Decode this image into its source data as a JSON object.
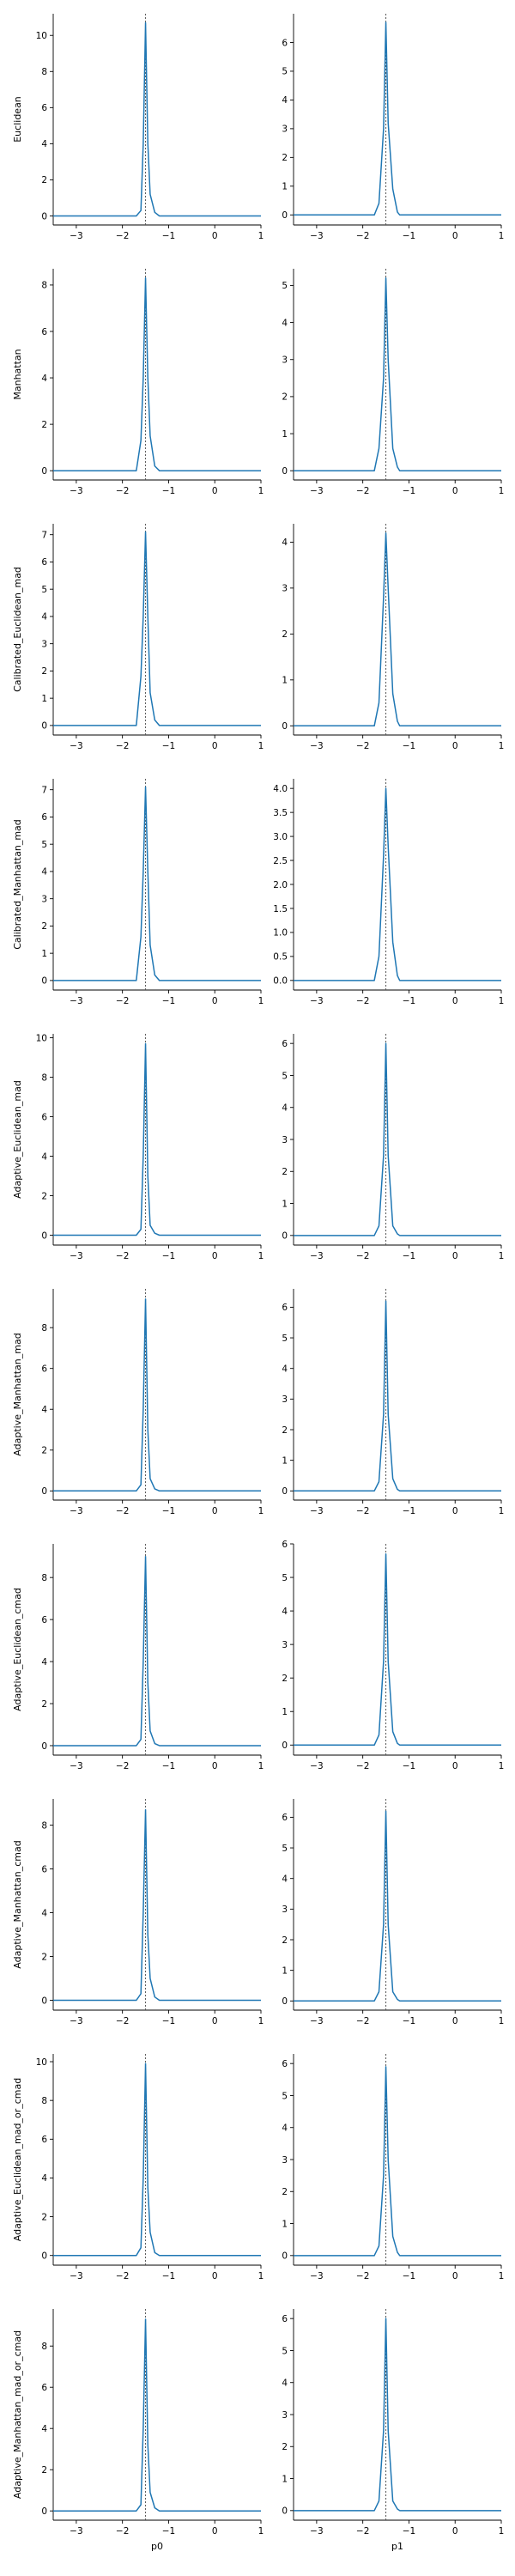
{
  "chart_data": {
    "type": "line",
    "layout": "grid",
    "rows": 10,
    "cols": 2,
    "line_color": "#1f77b4",
    "ref_line_color": "#555555",
    "reference_x": -1.5,
    "xlim": [
      -3.5,
      1.0
    ],
    "xticks": [
      -3,
      -2,
      -1,
      0,
      1
    ],
    "xtick_labels": [
      "−3",
      "−2",
      "−1",
      "0",
      "1"
    ],
    "xlabels": [
      "p0",
      "p1"
    ],
    "grid": false,
    "panels": [
      {
        "ylabel": "Euclidean",
        "col": 0,
        "ylim": [
          -0.5,
          11.2
        ],
        "yticks": [
          0,
          2,
          4,
          6,
          8,
          10
        ],
        "ytick_labels": [
          "0",
          "2",
          "4",
          "6",
          "8",
          "10"
        ],
        "x": [
          -3.5,
          -1.7,
          -1.6,
          -1.55,
          -1.5,
          -1.45,
          -1.4,
          -1.3,
          -1.2,
          1.0
        ],
        "y": [
          0,
          0,
          0.3,
          4.0,
          10.7,
          4.0,
          1.2,
          0.2,
          0,
          0
        ]
      },
      {
        "ylabel": "",
        "col": 1,
        "ylim": [
          -0.35,
          7.0
        ],
        "yticks": [
          0,
          1,
          2,
          3,
          4,
          5,
          6
        ],
        "ytick_labels": [
          "0",
          "1",
          "2",
          "3",
          "4",
          "5",
          "6"
        ],
        "x": [
          -3.5,
          -1.75,
          -1.65,
          -1.55,
          -1.5,
          -1.45,
          -1.35,
          -1.25,
          -1.2,
          1.0
        ],
        "y": [
          0,
          0,
          0.4,
          3.0,
          6.7,
          3.2,
          0.9,
          0.1,
          0,
          0
        ]
      },
      {
        "ylabel": "Manhattan",
        "col": 0,
        "ylim": [
          -0.4,
          8.7
        ],
        "yticks": [
          0,
          2,
          4,
          6,
          8
        ],
        "ytick_labels": [
          "0",
          "2",
          "4",
          "6",
          "8"
        ],
        "x": [
          -3.5,
          -1.7,
          -1.6,
          -1.55,
          -1.5,
          -1.45,
          -1.4,
          -1.3,
          -1.2,
          1.0
        ],
        "y": [
          0,
          0,
          1.3,
          4.0,
          8.3,
          4.0,
          1.5,
          0.2,
          0,
          0
        ]
      },
      {
        "ylabel": "",
        "col": 1,
        "ylim": [
          -0.25,
          5.45
        ],
        "yticks": [
          0,
          1,
          2,
          3,
          4,
          5
        ],
        "ytick_labels": [
          "0",
          "1",
          "2",
          "3",
          "4",
          "5"
        ],
        "x": [
          -3.5,
          -1.75,
          -1.65,
          -1.55,
          -1.5,
          -1.45,
          -1.35,
          -1.25,
          -1.2,
          1.0
        ],
        "y": [
          0,
          0,
          0.6,
          2.5,
          5.2,
          3.0,
          0.6,
          0.1,
          0,
          0
        ]
      },
      {
        "ylabel": "Calibrated_Euclidean_mad",
        "col": 0,
        "ylim": [
          -0.35,
          7.4
        ],
        "yticks": [
          0,
          1,
          2,
          3,
          4,
          5,
          6,
          7
        ],
        "ytick_labels": [
          "0",
          "1",
          "2",
          "3",
          "4",
          "5",
          "6",
          "7"
        ],
        "x": [
          -3.5,
          -1.7,
          -1.6,
          -1.55,
          -1.5,
          -1.45,
          -1.4,
          -1.3,
          -1.2,
          1.0
        ],
        "y": [
          0,
          0,
          1.8,
          4.0,
          7.1,
          4.0,
          1.2,
          0.2,
          0,
          0
        ]
      },
      {
        "ylabel": "",
        "col": 1,
        "ylim": [
          -0.2,
          4.4
        ],
        "yticks": [
          0,
          1,
          2,
          3,
          4
        ],
        "ytick_labels": [
          "0",
          "1",
          "2",
          "3",
          "4"
        ],
        "x": [
          -3.5,
          -1.75,
          -1.65,
          -1.55,
          -1.5,
          -1.45,
          -1.35,
          -1.25,
          -1.2,
          1.0
        ],
        "y": [
          0,
          0,
          0.5,
          2.8,
          4.2,
          3.0,
          0.7,
          0.1,
          0,
          0
        ]
      },
      {
        "ylabel": "Calibrated_Manhattan_mad",
        "col": 0,
        "ylim": [
          -0.35,
          7.4
        ],
        "yticks": [
          0,
          1,
          2,
          3,
          4,
          5,
          6,
          7
        ],
        "ytick_labels": [
          "0",
          "1",
          "2",
          "3",
          "4",
          "5",
          "6",
          "7"
        ],
        "x": [
          -3.5,
          -1.7,
          -1.6,
          -1.55,
          -1.5,
          -1.45,
          -1.4,
          -1.3,
          -1.2,
          1.0
        ],
        "y": [
          0,
          0,
          1.6,
          4.0,
          7.1,
          4.0,
          1.3,
          0.2,
          0,
          0
        ]
      },
      {
        "ylabel": "",
        "col": 1,
        "ylim": [
          -0.2,
          4.2
        ],
        "yticks": [
          0.0,
          0.5,
          1.0,
          1.5,
          2.0,
          2.5,
          3.0,
          3.5,
          4.0
        ],
        "ytick_labels": [
          "0.0",
          "0.5",
          "1.0",
          "1.5",
          "2.0",
          "2.5",
          "3.0",
          "3.5",
          "4.0"
        ],
        "x": [
          -3.5,
          -1.75,
          -1.65,
          -1.55,
          -1.5,
          -1.45,
          -1.35,
          -1.25,
          -1.2,
          1.0
        ],
        "y": [
          0,
          0,
          0.5,
          2.6,
          4.0,
          2.8,
          0.8,
          0.1,
          0,
          0
        ]
      },
      {
        "ylabel": "Adaptive_Euclidean_mad",
        "col": 0,
        "ylim": [
          -0.5,
          10.2
        ],
        "yticks": [
          0,
          2,
          4,
          6,
          8,
          10
        ],
        "ytick_labels": [
          "0",
          "2",
          "4",
          "6",
          "8",
          "10"
        ],
        "x": [
          -3.5,
          -1.7,
          -1.6,
          -1.55,
          -1.5,
          -1.45,
          -1.4,
          -1.3,
          -1.2,
          1.0
        ],
        "y": [
          0,
          0,
          0.3,
          4.0,
          9.7,
          3.0,
          0.5,
          0.1,
          0,
          0
        ]
      },
      {
        "ylabel": "",
        "col": 1,
        "ylim": [
          -0.3,
          6.3
        ],
        "yticks": [
          0,
          1,
          2,
          3,
          4,
          5,
          6
        ],
        "ytick_labels": [
          "0",
          "1",
          "2",
          "3",
          "4",
          "5",
          "6"
        ],
        "x": [
          -3.5,
          -1.75,
          -1.65,
          -1.55,
          -1.5,
          -1.45,
          -1.35,
          -1.25,
          -1.2,
          1.0
        ],
        "y": [
          0,
          0,
          0.3,
          2.5,
          6.0,
          2.5,
          0.3,
          0.05,
          0,
          0
        ]
      },
      {
        "ylabel": "Adaptive_Manhattan_mad",
        "col": 0,
        "ylim": [
          -0.45,
          9.9
        ],
        "yticks": [
          0,
          2,
          4,
          6,
          8
        ],
        "ytick_labels": [
          "0",
          "2",
          "4",
          "6",
          "8"
        ],
        "x": [
          -3.5,
          -1.7,
          -1.6,
          -1.55,
          -1.5,
          -1.45,
          -1.4,
          -1.3,
          -1.2,
          1.0
        ],
        "y": [
          0,
          0,
          0.3,
          4.0,
          9.4,
          3.0,
          0.6,
          0.1,
          0,
          0
        ]
      },
      {
        "ylabel": "",
        "col": 1,
        "ylim": [
          -0.3,
          6.6
        ],
        "yticks": [
          0,
          1,
          2,
          3,
          4,
          5,
          6
        ],
        "ytick_labels": [
          "0",
          "1",
          "2",
          "3",
          "4",
          "5",
          "6"
        ],
        "x": [
          -3.5,
          -1.75,
          -1.65,
          -1.55,
          -1.5,
          -1.45,
          -1.35,
          -1.25,
          -1.2,
          1.0
        ],
        "y": [
          0,
          0,
          0.3,
          2.5,
          6.2,
          2.5,
          0.4,
          0.05,
          0,
          0
        ]
      },
      {
        "ylabel": "Adaptive_Euclidean_cmad",
        "col": 0,
        "ylim": [
          -0.45,
          9.6
        ],
        "yticks": [
          0,
          2,
          4,
          6,
          8
        ],
        "ytick_labels": [
          "0",
          "2",
          "4",
          "6",
          "8"
        ],
        "x": [
          -3.5,
          -1.7,
          -1.6,
          -1.55,
          -1.5,
          -1.45,
          -1.4,
          -1.3,
          -1.2,
          1.0
        ],
        "y": [
          0,
          0,
          0.3,
          4.0,
          9.0,
          3.0,
          0.7,
          0.1,
          0,
          0
        ]
      },
      {
        "ylabel": "",
        "col": 1,
        "ylim": [
          -0.3,
          6.0
        ],
        "yticks": [
          0,
          1,
          2,
          3,
          4,
          5,
          6
        ],
        "ytick_labels": [
          "0",
          "1",
          "2",
          "3",
          "4",
          "5",
          "6"
        ],
        "x": [
          -3.5,
          -1.75,
          -1.65,
          -1.55,
          -1.5,
          -1.45,
          -1.35,
          -1.25,
          -1.2,
          1.0
        ],
        "y": [
          0,
          0,
          0.3,
          2.5,
          5.7,
          2.5,
          0.4,
          0.05,
          0,
          0
        ]
      },
      {
        "ylabel": "Adaptive_Manhattan_cmad",
        "col": 0,
        "ylim": [
          -0.45,
          9.2
        ],
        "yticks": [
          0,
          2,
          4,
          6,
          8
        ],
        "ytick_labels": [
          "0",
          "2",
          "4",
          "6",
          "8"
        ],
        "x": [
          -3.5,
          -1.7,
          -1.6,
          -1.55,
          -1.5,
          -1.45,
          -1.4,
          -1.3,
          -1.2,
          1.0
        ],
        "y": [
          0,
          0,
          0.3,
          4.0,
          8.7,
          3.0,
          1.0,
          0.15,
          0,
          0
        ]
      },
      {
        "ylabel": "",
        "col": 1,
        "ylim": [
          -0.3,
          6.6
        ],
        "yticks": [
          0,
          1,
          2,
          3,
          4,
          5,
          6
        ],
        "ytick_labels": [
          "0",
          "1",
          "2",
          "3",
          "4",
          "5",
          "6"
        ],
        "x": [
          -3.5,
          -1.75,
          -1.65,
          -1.55,
          -1.5,
          -1.45,
          -1.35,
          -1.25,
          -1.2,
          1.0
        ],
        "y": [
          0,
          0,
          0.3,
          2.5,
          6.2,
          2.5,
          0.3,
          0.05,
          0,
          0
        ]
      },
      {
        "ylabel": "Adaptive_Euclidean_mad_or_cmad",
        "col": 0,
        "ylim": [
          -0.5,
          10.4
        ],
        "yticks": [
          0,
          2,
          4,
          6,
          8,
          10
        ],
        "ytick_labels": [
          "0",
          "2",
          "4",
          "6",
          "8",
          "10"
        ],
        "x": [
          -3.5,
          -1.7,
          -1.6,
          -1.55,
          -1.5,
          -1.45,
          -1.4,
          -1.3,
          -1.2,
          1.0
        ],
        "y": [
          0,
          0,
          0.4,
          4.0,
          9.9,
          3.5,
          1.2,
          0.15,
          0,
          0
        ]
      },
      {
        "ylabel": "",
        "col": 1,
        "ylim": [
          -0.3,
          6.3
        ],
        "yticks": [
          0,
          1,
          2,
          3,
          4,
          5,
          6
        ],
        "ytick_labels": [
          "0",
          "1",
          "2",
          "3",
          "4",
          "5",
          "6"
        ],
        "x": [
          -3.5,
          -1.75,
          -1.65,
          -1.55,
          -1.5,
          -1.45,
          -1.35,
          -1.25,
          -1.2,
          1.0
        ],
        "y": [
          0,
          0,
          0.3,
          2.5,
          5.9,
          3.0,
          0.6,
          0.1,
          0,
          0
        ]
      },
      {
        "ylabel": "Adaptive_Manhattan_mad_or_cmad",
        "col": 0,
        "ylim": [
          -0.45,
          9.8
        ],
        "yticks": [
          0,
          2,
          4,
          6,
          8
        ],
        "ytick_labels": [
          "0",
          "2",
          "4",
          "6",
          "8"
        ],
        "x": [
          -3.5,
          -1.7,
          -1.6,
          -1.55,
          -1.5,
          -1.45,
          -1.4,
          -1.3,
          -1.2,
          1.0
        ],
        "y": [
          0,
          0,
          0.3,
          4.0,
          9.3,
          3.2,
          0.9,
          0.15,
          0,
          0
        ]
      },
      {
        "ylabel": "",
        "col": 1,
        "ylim": [
          -0.3,
          6.3
        ],
        "yticks": [
          0,
          1,
          2,
          3,
          4,
          5,
          6
        ],
        "ytick_labels": [
          "0",
          "1",
          "2",
          "3",
          "4",
          "5",
          "6"
        ],
        "x": [
          -3.5,
          -1.75,
          -1.65,
          -1.55,
          -1.5,
          -1.45,
          -1.35,
          -1.25,
          -1.2,
          1.0
        ],
        "y": [
          0,
          0,
          0.3,
          2.5,
          6.0,
          2.5,
          0.3,
          0.05,
          0,
          0
        ]
      }
    ]
  }
}
